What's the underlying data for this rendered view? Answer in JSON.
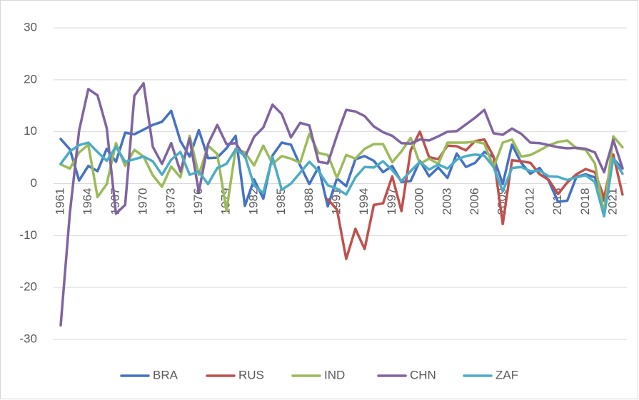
{
  "chart_data": {
    "type": "line",
    "categories": [
      "1961",
      null,
      null,
      "1964",
      null,
      null,
      "1967",
      null,
      null,
      "1970",
      null,
      null,
      "1973",
      null,
      null,
      "1976",
      null,
      null,
      "1979",
      null,
      null,
      "1982",
      null,
      null,
      "1985",
      null,
      null,
      "1988",
      null,
      null,
      "1991",
      null,
      null,
      "1994",
      null,
      null,
      "1997",
      null,
      null,
      "2000",
      null,
      null,
      "2003",
      null,
      null,
      "2006",
      null,
      null,
      "2009",
      null,
      null,
      "2012",
      null,
      null,
      "2015",
      null,
      null,
      "2018",
      null,
      null,
      "2021",
      null
    ],
    "series": [
      {
        "name": "BRA",
        "color": "#4472c4",
        "values": [
          8.6,
          6.6,
          0.6,
          3.4,
          2.4,
          6.7,
          4.2,
          9.8,
          9.5,
          10.4,
          11.3,
          11.9,
          14.0,
          8.2,
          5.2,
          10.3,
          4.9,
          5.0,
          6.8,
          9.2,
          -4.3,
          0.8,
          -2.9,
          5.4,
          7.9,
          7.5,
          3.5,
          -0.1,
          3.2,
          -4.4,
          1.0,
          -0.5,
          4.7,
          5.3,
          4.4,
          2.2,
          3.4,
          0.3,
          0.5,
          4.4,
          1.4,
          3.1,
          1.1,
          5.8,
          3.2,
          4.0,
          6.1,
          5.1,
          -0.1,
          7.5,
          4.0,
          1.9,
          3.0,
          0.5,
          -3.5,
          -3.3,
          1.3,
          1.8,
          1.2,
          -3.3,
          4.8,
          2.9
        ]
      },
      {
        "name": "RUS",
        "color": "#c0504d",
        "values": [
          null,
          null,
          null,
          null,
          null,
          null,
          null,
          null,
          null,
          null,
          null,
          null,
          null,
          null,
          null,
          null,
          null,
          null,
          null,
          null,
          null,
          null,
          null,
          null,
          null,
          null,
          null,
          null,
          null,
          -3.0,
          -5.0,
          -14.5,
          -8.7,
          -12.6,
          -4.1,
          -3.8,
          1.4,
          -5.3,
          6.4,
          10.0,
          5.1,
          4.7,
          7.3,
          7.2,
          6.4,
          8.2,
          8.5,
          5.2,
          -7.8,
          4.5,
          4.3,
          4.0,
          1.8,
          0.7,
          -2.0,
          0.2,
          1.8,
          2.8,
          2.2,
          -2.7,
          5.6,
          -2.1
        ]
      },
      {
        "name": "IND",
        "color": "#9bbb59",
        "values": [
          3.7,
          2.9,
          6.0,
          7.5,
          -2.6,
          -0.1,
          7.8,
          3.4,
          6.5,
          5.2,
          1.6,
          -0.6,
          3.3,
          1.2,
          9.2,
          1.7,
          7.3,
          5.7,
          -5.2,
          6.7,
          6.0,
          3.5,
          7.3,
          3.8,
          5.3,
          4.8,
          4.0,
          9.6,
          5.9,
          5.5,
          1.1,
          5.5,
          4.8,
          6.7,
          7.6,
          7.6,
          4.1,
          6.2,
          8.8,
          3.8,
          4.8,
          3.8,
          7.9,
          7.9,
          7.9,
          8.1,
          7.7,
          3.1,
          7.9,
          8.5,
          5.2,
          5.5,
          6.4,
          7.4,
          8.0,
          8.3,
          6.8,
          6.5,
          3.9,
          -5.8,
          9.1,
          7.0
        ]
      },
      {
        "name": "CHN",
        "color": "#8064a2",
        "values": [
          -27.3,
          -5.6,
          10.2,
          18.2,
          17.0,
          10.7,
          -5.8,
          -4.1,
          16.9,
          19.3,
          7.1,
          3.8,
          7.8,
          2.3,
          8.7,
          -1.6,
          7.6,
          11.3,
          7.6,
          7.8,
          5.1,
          9.0,
          10.8,
          15.2,
          13.4,
          8.9,
          11.7,
          11.2,
          4.2,
          3.9,
          9.3,
          14.2,
          13.9,
          13.0,
          11.0,
          9.9,
          9.2,
          7.8,
          7.7,
          8.5,
          8.3,
          9.1,
          10.0,
          10.1,
          11.4,
          12.7,
          14.2,
          9.7,
          9.4,
          10.6,
          9.6,
          7.9,
          7.8,
          7.4,
          7.0,
          6.8,
          6.9,
          6.7,
          6.0,
          2.2,
          8.4,
          3.0
        ]
      },
      {
        "name": "ZAF",
        "color": "#4bacc6",
        "values": [
          3.8,
          6.2,
          7.4,
          7.9,
          6.1,
          4.4,
          7.1,
          4.2,
          4.7,
          5.2,
          4.3,
          1.7,
          4.6,
          6.1,
          1.7,
          2.3,
          -0.1,
          3.0,
          3.8,
          6.6,
          5.4,
          -0.4,
          -1.8,
          5.1,
          -1.2,
          0.0,
          2.1,
          4.2,
          2.4,
          -0.3,
          -1.0,
          -2.1,
          1.2,
          3.2,
          3.1,
          4.3,
          2.6,
          0.5,
          2.4,
          4.2,
          2.7,
          3.7,
          2.9,
          4.6,
          5.3,
          5.6,
          5.4,
          3.2,
          -1.5,
          3.0,
          3.2,
          2.4,
          2.5,
          1.4,
          1.3,
          0.7,
          1.2,
          1.6,
          0.3,
          -6.3,
          4.9,
          1.9
        ]
      }
    ],
    "ylim": [
      -30,
      30
    ],
    "yticks": [
      -30,
      -20,
      -10,
      0,
      10,
      20,
      30
    ],
    "grid": true,
    "legend": "bottom"
  }
}
